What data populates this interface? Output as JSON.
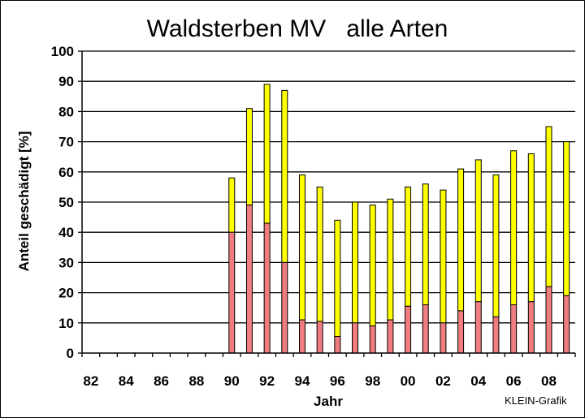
{
  "chart_data": {
    "type": "bar",
    "stacked": true,
    "title": "Waldsterben MV   alle Arten",
    "xlabel": "Jahr",
    "ylabel": "Anteil geschädigt [%]",
    "ylim": [
      0,
      100
    ],
    "yticks": [
      0,
      10,
      20,
      30,
      40,
      50,
      60,
      70,
      80,
      90,
      100
    ],
    "x_range": [
      1982,
      2009
    ],
    "xtick_labels": [
      "82",
      "84",
      "86",
      "88",
      "90",
      "92",
      "94",
      "96",
      "98",
      "00",
      "02",
      "04",
      "06",
      "08"
    ],
    "grid": "horizontal",
    "years": [
      1990,
      1991,
      1992,
      1993,
      1994,
      1995,
      1996,
      1997,
      1998,
      1999,
      2000,
      2001,
      2002,
      2003,
      2004,
      2005,
      2006,
      2007,
      2008,
      2009
    ],
    "strong_damage": [
      40,
      49,
      43,
      30,
      11,
      10.5,
      5.5,
      10,
      9,
      11,
      15.5,
      16,
      10,
      14,
      17,
      12,
      16,
      17,
      22,
      19
    ],
    "total": [
      58,
      81,
      89,
      87,
      59,
      55,
      44,
      50,
      49,
      51,
      55,
      56,
      54,
      61,
      64,
      59,
      67,
      66,
      75,
      70
    ],
    "colors": {
      "bottom": "#f07c80",
      "top": "#ffff00",
      "outline": "#000000",
      "grid": "#000000"
    }
  },
  "credit": "KLEIN-Grafik"
}
